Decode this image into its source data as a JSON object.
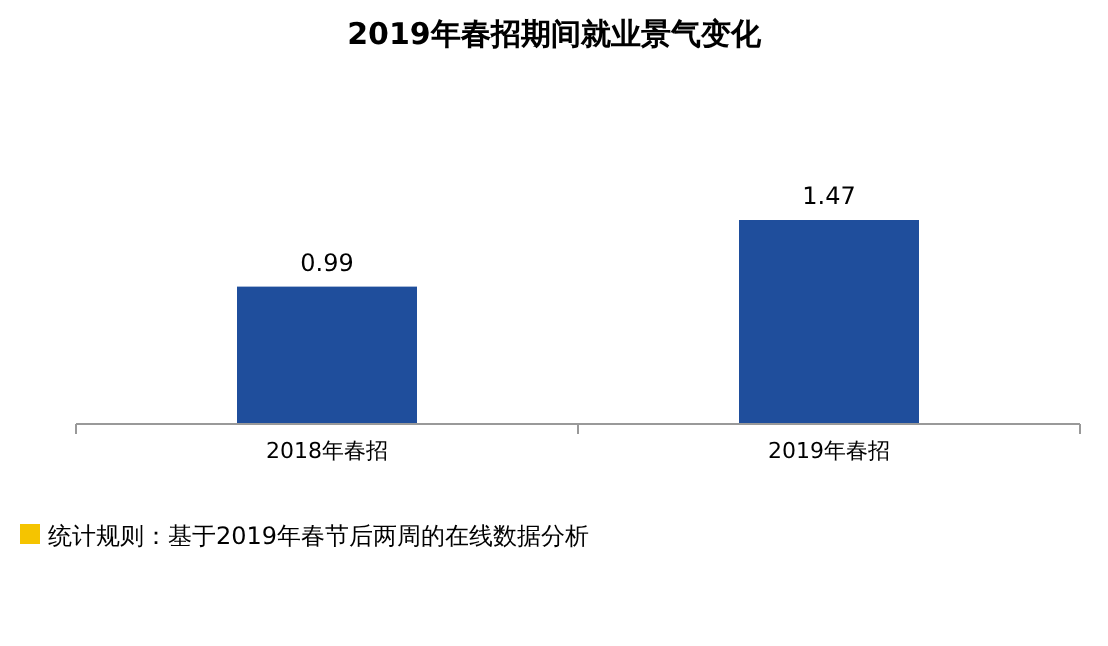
{
  "chart_data": {
    "type": "bar",
    "title": "2019年春招期间就业景气变化",
    "categories": [
      "2018年春招",
      "2019年春招"
    ],
    "values": [
      0.99,
      1.47
    ],
    "color": "#1f4e9c",
    "data_labels": true,
    "annotations": [
      "统计规则：基于2019年春节后两周的在线数据分析"
    ]
  }
}
